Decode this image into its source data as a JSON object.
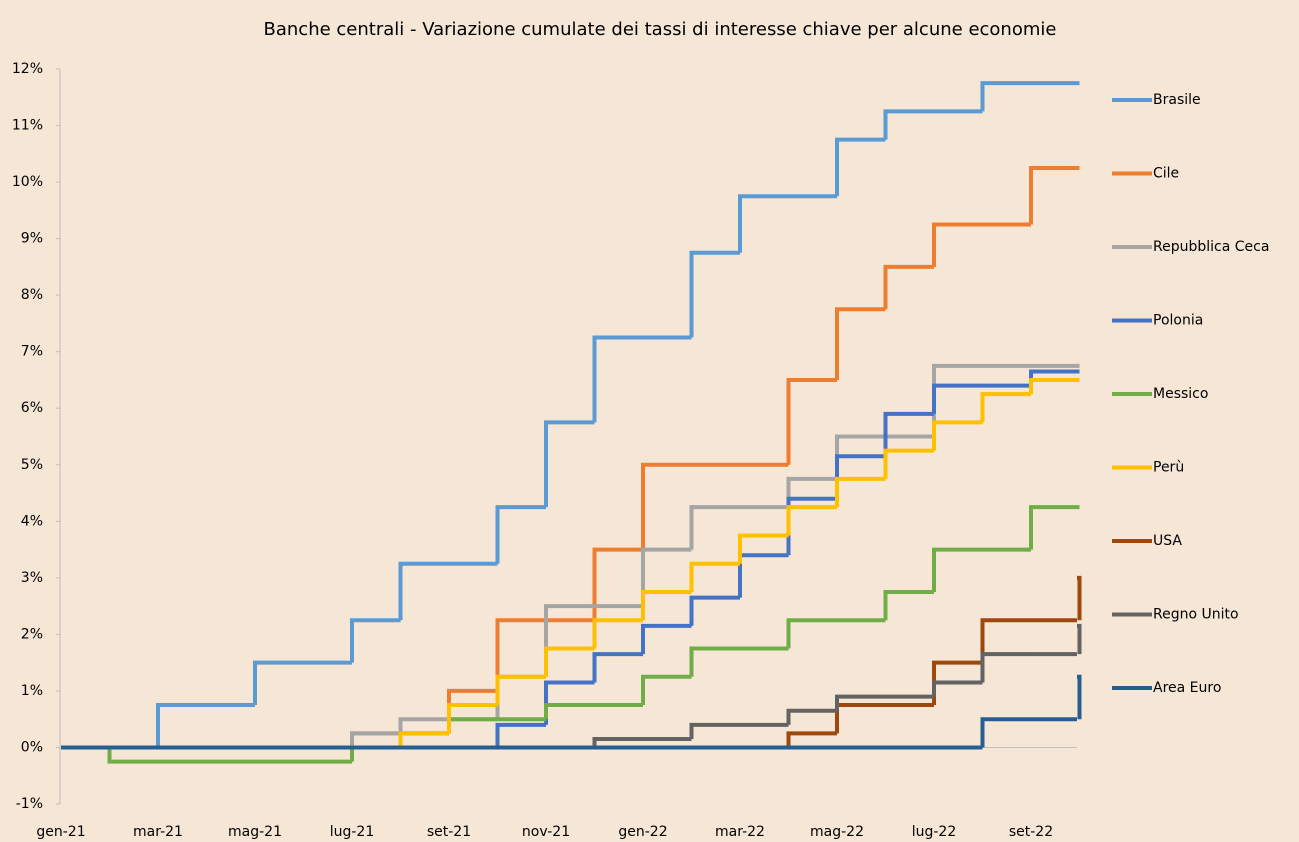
{
  "chart_data": {
    "type": "step",
    "title": "Banche centrali - Variazione cumulate dei tassi di interesse chiave per alcune economie",
    "categories": [
      "gen-21",
      null,
      "mar-21",
      null,
      "mag-21",
      null,
      "lug-21",
      null,
      "set-21",
      null,
      "nov-21",
      null,
      "gen-22",
      null,
      "mar-22",
      null,
      "mag-22",
      null,
      "lug-22",
      null,
      "set-22",
      null
    ],
    "ylim": [
      -1,
      12
    ],
    "yticks": [
      {
        "value": -1,
        "label": "-1%"
      },
      {
        "value": 0,
        "label": "0%"
      },
      {
        "value": 1,
        "label": "1%"
      },
      {
        "value": 2,
        "label": "2%"
      },
      {
        "value": 3,
        "label": "3%"
      },
      {
        "value": 4,
        "label": "4%"
      },
      {
        "value": 5,
        "label": "5%"
      },
      {
        "value": 6,
        "label": "6%"
      },
      {
        "value": 7,
        "label": "7%"
      },
      {
        "value": 8,
        "label": "8%"
      },
      {
        "value": 9,
        "label": "9%"
      },
      {
        "value": 10,
        "label": "10%"
      },
      {
        "value": 11,
        "label": "11%"
      },
      {
        "value": 12,
        "label": "12%"
      }
    ],
    "legend": "right",
    "series": [
      {
        "name": "Brasile",
        "color": "#5b9bd5",
        "values": [
          0,
          0,
          0.75,
          0.75,
          1.5,
          1.5,
          2.25,
          3.25,
          3.25,
          4.25,
          5.75,
          7.25,
          7.25,
          8.75,
          9.75,
          9.75,
          10.75,
          11.25,
          11.25,
          11.75,
          11.75,
          11.75
        ]
      },
      {
        "name": "Cile",
        "color": "#ed7d31",
        "values": [
          0,
          0,
          0,
          0,
          0,
          0,
          0.25,
          0.25,
          1,
          2.25,
          2.25,
          3.5,
          5,
          5,
          5,
          6.5,
          7.75,
          8.5,
          9.25,
          9.25,
          10.25,
          10.25
        ]
      },
      {
        "name": "Repubblica Ceca",
        "color": "#a5a5a5",
        "values": [
          0,
          0,
          0,
          0,
          0,
          0,
          0.25,
          0.5,
          0.5,
          1.25,
          2.5,
          2.5,
          3.5,
          4.25,
          4.25,
          4.75,
          5.5,
          5.5,
          6.75,
          6.75,
          6.75,
          6.75
        ]
      },
      {
        "name": "Polonia",
        "color": "#4472c4",
        "values": [
          0,
          0,
          0,
          0,
          0,
          0,
          0,
          0,
          0,
          0.4,
          1.15,
          1.65,
          2.15,
          2.65,
          3.4,
          4.4,
          5.15,
          5.9,
          6.4,
          6.4,
          6.65,
          6.65
        ]
      },
      {
        "name": "Messico",
        "color": "#70ad47",
        "values": [
          0,
          -0.25,
          -0.25,
          -0.25,
          -0.25,
          -0.25,
          0,
          0.25,
          0.5,
          0.5,
          0.75,
          0.75,
          1.25,
          1.75,
          1.75,
          2.25,
          2.25,
          2.75,
          3.5,
          3.5,
          4.25,
          4.25
        ]
      },
      {
        "name": "Perù",
        "color": "#ffc000",
        "values": [
          0,
          0,
          0,
          0,
          0,
          0,
          0,
          0.25,
          0.75,
          1.25,
          1.75,
          2.25,
          2.75,
          3.25,
          3.75,
          4.25,
          4.75,
          5.25,
          5.75,
          6.25,
          6.5,
          6.5
        ]
      },
      {
        "name": "USA",
        "color": "#9e480e",
        "values": [
          0,
          0,
          0,
          0,
          0,
          0,
          0,
          0,
          0,
          0,
          0,
          0,
          0,
          0,
          0,
          0.25,
          0.75,
          0.75,
          1.5,
          2.25,
          2.25,
          3
        ]
      },
      {
        "name": "Regno Unito",
        "color": "#636363",
        "values": [
          0,
          0,
          0,
          0,
          0,
          0,
          0,
          0,
          0,
          0,
          0,
          0.15,
          0.15,
          0.4,
          0.4,
          0.65,
          0.9,
          0.9,
          1.15,
          1.65,
          1.65,
          2.15
        ]
      },
      {
        "name": "Area Euro",
        "color": "#255e91",
        "values": [
          0,
          0,
          0,
          0,
          0,
          0,
          0,
          0,
          0,
          0,
          0,
          0,
          0,
          0,
          0,
          0,
          0,
          0,
          0,
          0.5,
          0.5,
          1.25
        ]
      }
    ]
  }
}
